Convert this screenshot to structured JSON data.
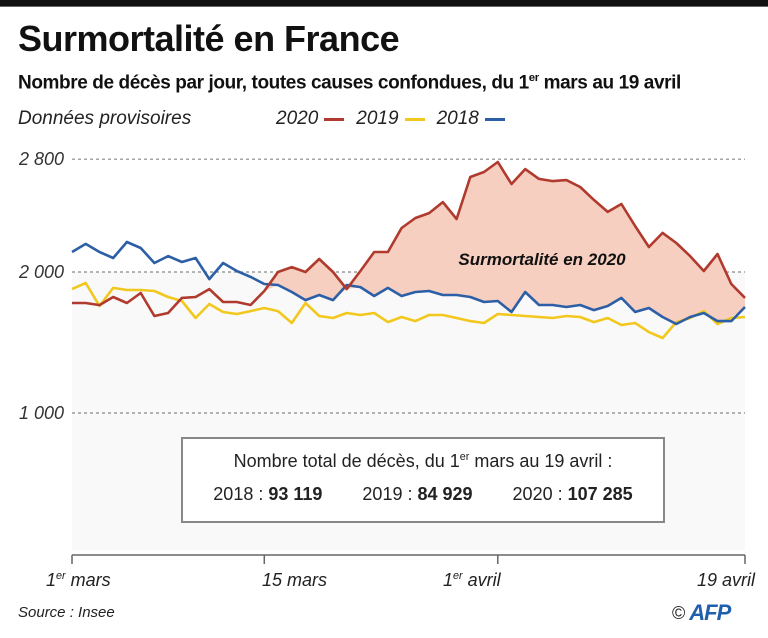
{
  "header": {
    "title": "Surmortalité en France",
    "subtitle_pre": "Nombre de décès par jour, toutes causes confondues, du 1",
    "subtitle_sup": "er",
    "subtitle_post": " mars au 19 avril",
    "note": "Données provisoires"
  },
  "legend": [
    {
      "label": "2020",
      "color": "#b03a2e"
    },
    {
      "label": "2019",
      "color": "#f2c81e"
    },
    {
      "label": "2018",
      "color": "#2d5fa6"
    }
  ],
  "annotation": "Surmortalité en 2020",
  "totals_box": {
    "title_pre": "Nombre total de décès, du 1",
    "title_sup": "er",
    "title_post": " mars au 19 avril :",
    "items": [
      {
        "year": "2018",
        "sep": " : ",
        "value": "93 119"
      },
      {
        "year": "2019",
        "sep": " : ",
        "value": "84 929"
      },
      {
        "year": "2020",
        "sep": " : ",
        "value": "107 285"
      }
    ]
  },
  "x_ticks": [
    {
      "pre": "1",
      "sup": "er",
      "post": " mars",
      "day": 0
    },
    {
      "pre": "15 mars",
      "sup": "",
      "post": "",
      "day": 14
    },
    {
      "pre": "1",
      "sup": "er",
      "post": " avril",
      "day": 31
    },
    {
      "pre": "19 avril",
      "sup": "",
      "post": "",
      "day": 49
    }
  ],
  "footer": {
    "source": "Source : Insee",
    "copyright": "©",
    "agency": "AFP"
  },
  "chart_data": {
    "type": "line",
    "title": "Surmortalité en France",
    "subtitle": "Nombre de décès par jour, toutes causes confondues, du 1er mars au 19 avril",
    "xlabel": "",
    "ylabel": "",
    "x_range": [
      "2020-03-01",
      "2020-04-19"
    ],
    "x_tick_labels": [
      "1er mars",
      "15 mars",
      "1er avril",
      "19 avril"
    ],
    "ylim": [
      0,
      2950
    ],
    "y_ticks": [
      1000,
      2000,
      2800
    ],
    "y_tick_labels": [
      "1 000",
      "2 000",
      "2 800"
    ],
    "grid": "dashed horizontal at ticks",
    "legend_position": "top",
    "shaded_area": {
      "between": [
        "2020",
        "max(2018,2019)"
      ],
      "label": "Surmortalité en 2020",
      "color": "#f6cfc0"
    },
    "series": [
      {
        "name": "2020",
        "color": "#b03a2e",
        "values": [
          1780,
          1780,
          1765,
          1823,
          1780,
          1851,
          1688,
          1709,
          1816,
          1823,
          1879,
          1787,
          1787,
          1766,
          1865,
          2000,
          2035,
          2000,
          2092,
          2000,
          1879,
          2007,
          2142,
          2142,
          2312,
          2383,
          2418,
          2496,
          2376,
          2674,
          2709,
          2780,
          2624,
          2730,
          2660,
          2645,
          2652,
          2603,
          2511,
          2426,
          2482,
          2326,
          2177,
          2277,
          2206,
          2113,
          2007,
          2128,
          1915,
          1816
        ]
      },
      {
        "name": "2019",
        "color": "#f2c81e",
        "values": [
          1879,
          1922,
          1759,
          1887,
          1872,
          1872,
          1865,
          1823,
          1794,
          1674,
          1773,
          1716,
          1702,
          1723,
          1745,
          1723,
          1638,
          1780,
          1688,
          1674,
          1709,
          1695,
          1709,
          1645,
          1681,
          1652,
          1695,
          1695,
          1674,
          1652,
          1638,
          1702,
          1695,
          1688,
          1681,
          1674,
          1688,
          1681,
          1645,
          1674,
          1624,
          1638,
          1574,
          1532,
          1645,
          1674,
          1723,
          1631,
          1674,
          1681
        ]
      },
      {
        "name": "2018",
        "color": "#2d5fa6",
        "values": [
          2142,
          2199,
          2142,
          2099,
          2213,
          2170,
          2064,
          2113,
          2071,
          2099,
          1950,
          2064,
          2007,
          1965,
          1915,
          1908,
          1858,
          1801,
          1837,
          1801,
          1908,
          1893,
          1830,
          1887,
          1830,
          1858,
          1865,
          1837,
          1837,
          1823,
          1787,
          1794,
          1716,
          1858,
          1766,
          1766,
          1752,
          1766,
          1730,
          1759,
          1816,
          1716,
          1745,
          1681,
          1631,
          1681,
          1709,
          1652,
          1652,
          1752
        ]
      }
    ]
  }
}
